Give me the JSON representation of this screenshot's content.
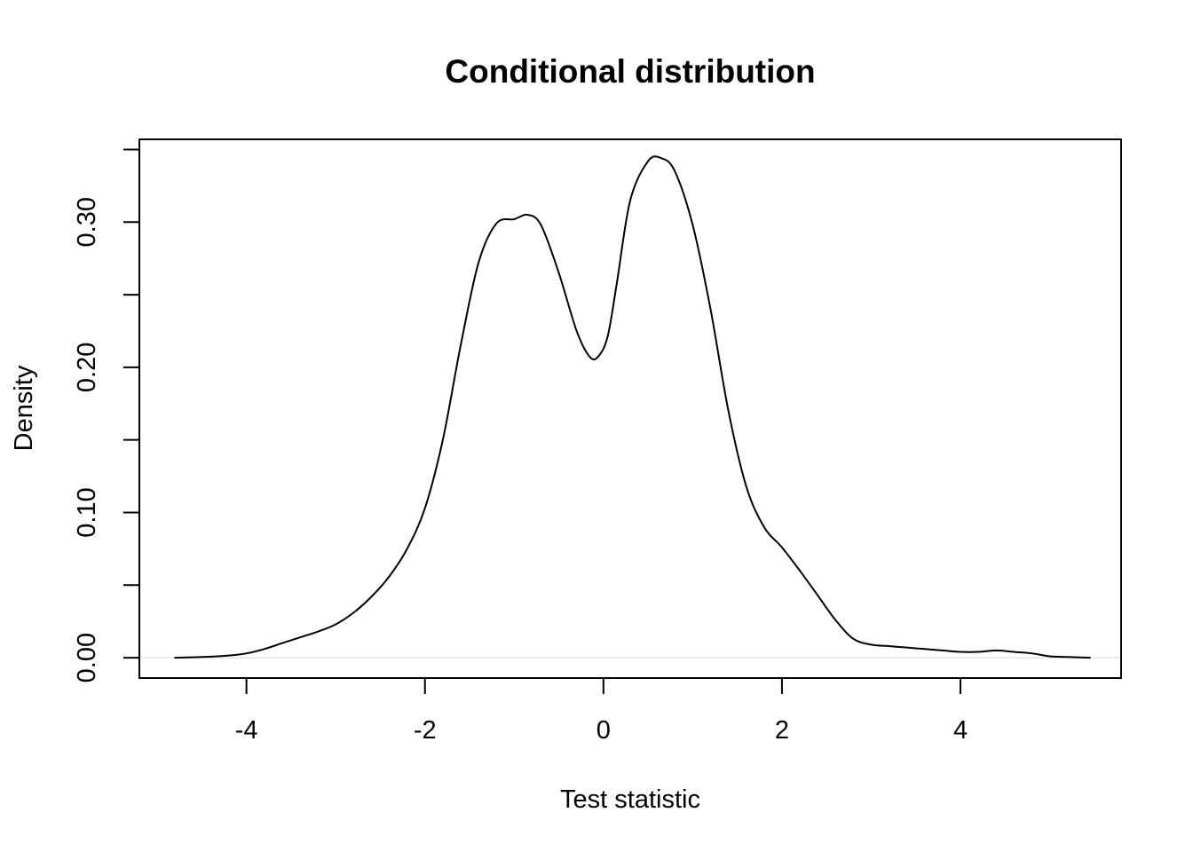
{
  "chart_data": {
    "type": "line",
    "title": "Conditional distribution",
    "xlabel": "Test statistic",
    "ylabel": "Density",
    "xlim": [
      -5.2,
      5.8
    ],
    "ylim": [
      -0.014,
      0.357
    ],
    "x_ticks": [
      -4,
      -2,
      0,
      2,
      4
    ],
    "x_tick_labels": [
      "-4",
      "-2",
      "0",
      "2",
      "4"
    ],
    "y_ticks": [
      0.0,
      0.05,
      0.1,
      0.15,
      0.2,
      0.25,
      0.3,
      0.35
    ],
    "y_tick_labels": [
      "0.00",
      "",
      "0.10",
      "",
      "0.20",
      "",
      "0.30",
      ""
    ],
    "grid": false,
    "legend": "none",
    "baseline": 0,
    "colors": {
      "line": "#000000",
      "baseline": "#e6e6e6",
      "frame": "#000000"
    },
    "series": [
      {
        "x": [
          -4.8,
          -4.5,
          -4.2,
          -4.0,
          -3.8,
          -3.6,
          -3.4,
          -3.2,
          -3.0,
          -2.8,
          -2.6,
          -2.4,
          -2.2,
          -2.0,
          -1.8,
          -1.6,
          -1.4,
          -1.2,
          -1.0,
          -0.85,
          -0.7,
          -0.5,
          -0.3,
          -0.15,
          -0.05,
          0.05,
          0.15,
          0.3,
          0.5,
          0.65,
          0.8,
          1.0,
          1.2,
          1.4,
          1.6,
          1.8,
          2.0,
          2.2,
          2.4,
          2.6,
          2.8,
          3.0,
          3.2,
          3.4,
          3.6,
          3.8,
          4.0,
          4.2,
          4.4,
          4.6,
          4.8,
          5.0,
          5.2,
          5.45
        ],
        "y": [
          0.0,
          0.0005,
          0.0015,
          0.003,
          0.006,
          0.01,
          0.014,
          0.018,
          0.023,
          0.031,
          0.042,
          0.056,
          0.075,
          0.103,
          0.15,
          0.215,
          0.272,
          0.299,
          0.302,
          0.305,
          0.298,
          0.265,
          0.225,
          0.207,
          0.208,
          0.222,
          0.258,
          0.315,
          0.342,
          0.344,
          0.335,
          0.298,
          0.24,
          0.17,
          0.118,
          0.09,
          0.076,
          0.06,
          0.043,
          0.026,
          0.013,
          0.009,
          0.008,
          0.007,
          0.006,
          0.005,
          0.004,
          0.004,
          0.005,
          0.004,
          0.003,
          0.001,
          0.0005,
          0.0
        ]
      }
    ]
  }
}
